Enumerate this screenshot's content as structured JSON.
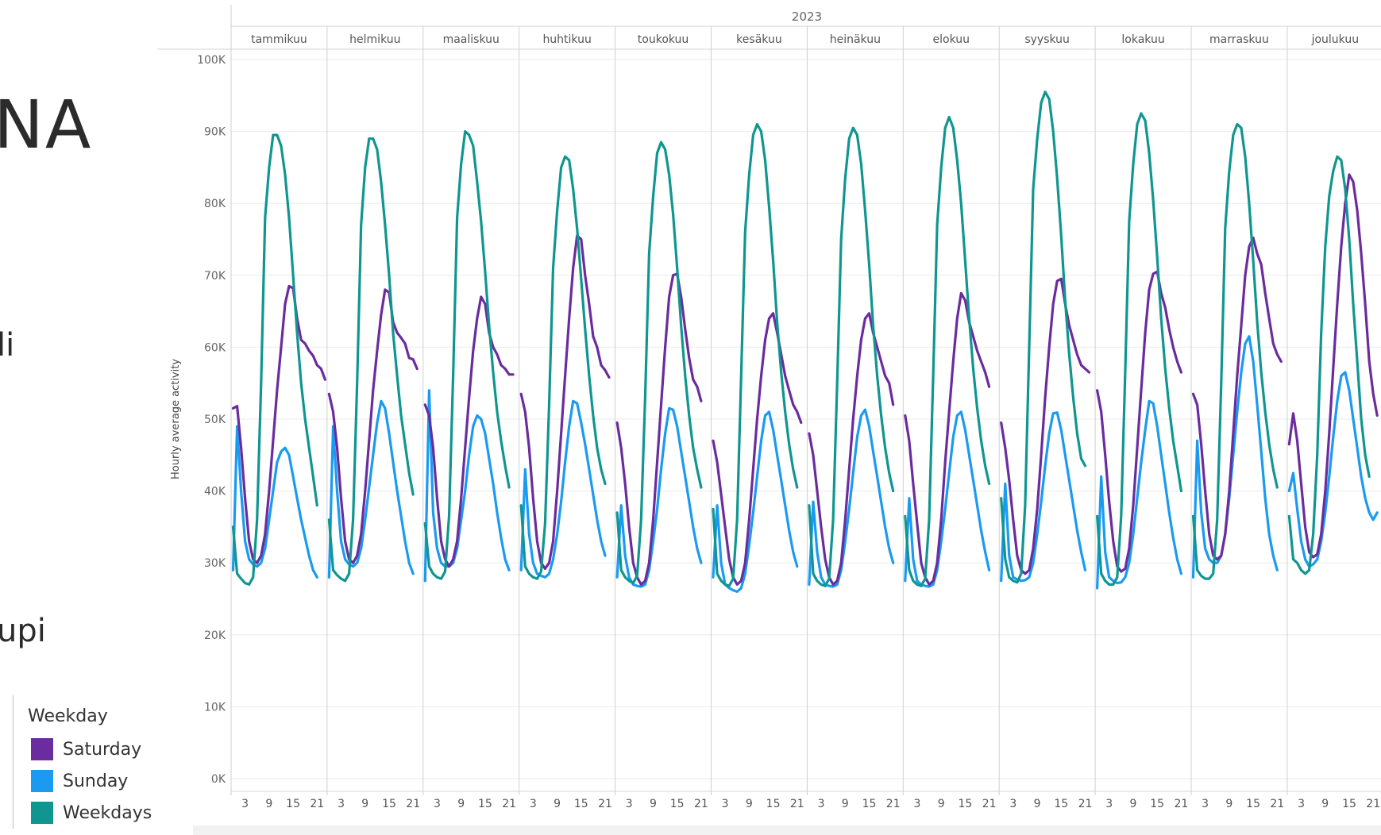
{
  "slide": {
    "heading_fragment": "NA",
    "text_fragment_1": "li",
    "text_fragment_2": "upi"
  },
  "legend": {
    "title": "Weekday",
    "items": [
      {
        "label": "Saturday",
        "color": "#6a2c9e"
      },
      {
        "label": "Sunday",
        "color": "#1a9af0"
      },
      {
        "label": "Weekdays",
        "color": "#0f9690"
      }
    ]
  },
  "chart_data": {
    "type": "line",
    "title": "2023",
    "ylabel": "Hourly average activity",
    "xlabel": "",
    "ylim": [
      0,
      100000
    ],
    "y_ticks": [
      "0K",
      "10K",
      "20K",
      "30K",
      "40K",
      "50K",
      "60K",
      "70K",
      "80K",
      "90K",
      "100K"
    ],
    "y_tick_values": [
      0,
      10000,
      20000,
      30000,
      40000,
      50000,
      60000,
      70000,
      80000,
      90000,
      100000
    ],
    "x_tick_labels": [
      "3",
      "9",
      "15",
      "21"
    ],
    "x_tick_hours": [
      3,
      9,
      15,
      21
    ],
    "hours_per_month": 24,
    "grid": true,
    "legend_position": "bottom-left",
    "months": [
      "tammikuu",
      "helmikuu",
      "maaliskuu",
      "huhtikuu",
      "toukokuu",
      "kesäkuu",
      "heinäkuu",
      "elokuu",
      "syyskuu",
      "lokakuu",
      "marraskuu",
      "joulukuu"
    ],
    "series": [
      {
        "name": "Saturday",
        "color": "#6a2c9e",
        "values_by_month": [
          [
            51500,
            51800,
            46000,
            39000,
            33000,
            30500,
            30000,
            31000,
            34000,
            40000,
            47000,
            54000,
            60000,
            66000,
            68500,
            68200,
            64000,
            61000,
            60500,
            59500,
            58800,
            57500,
            57000,
            55500
          ],
          [
            53500,
            51000,
            46000,
            39000,
            33000,
            30500,
            30000,
            31000,
            34000,
            40000,
            47000,
            54000,
            59500,
            64500,
            68000,
            67600,
            63500,
            62000,
            61300,
            60500,
            58500,
            58300,
            57000,
            null
          ],
          [
            52000,
            50500,
            46000,
            39000,
            33000,
            30500,
            29500,
            30500,
            33000,
            39000,
            46000,
            53000,
            59500,
            64000,
            67000,
            66000,
            62000,
            60000,
            59000,
            57500,
            57000,
            56200,
            56200,
            null
          ],
          [
            53500,
            51000,
            46000,
            39000,
            33000,
            30000,
            29200,
            30000,
            33000,
            40000,
            48000,
            56000,
            64000,
            71000,
            75500,
            75000,
            70000,
            66000,
            61500,
            60000,
            57500,
            56800,
            55800,
            null
          ],
          [
            49500,
            46000,
            41000,
            35000,
            30000,
            28000,
            27000,
            27500,
            30000,
            36000,
            44000,
            52000,
            60000,
            67000,
            70000,
            70200,
            67000,
            62500,
            58500,
            55500,
            54500,
            52500,
            null,
            null
          ],
          [
            47000,
            44000,
            39500,
            35000,
            30500,
            28000,
            27000,
            27500,
            30000,
            36000,
            43000,
            50000,
            56000,
            61000,
            64000,
            64700,
            62000,
            59000,
            56000,
            54000,
            52000,
            51000,
            49500,
            null
          ],
          [
            48000,
            45000,
            40000,
            35000,
            30500,
            28000,
            27000,
            27500,
            30000,
            36000,
            43000,
            50000,
            56000,
            61000,
            64000,
            64700,
            62000,
            60000,
            58000,
            56000,
            55000,
            52000,
            null,
            null
          ],
          [
            50500,
            47000,
            41000,
            35500,
            30000,
            28000,
            27000,
            27500,
            30000,
            36000,
            44000,
            51000,
            58000,
            64000,
            67500,
            66500,
            63500,
            61500,
            59500,
            58000,
            56500,
            54500,
            null,
            null
          ],
          [
            49500,
            46000,
            41500,
            36000,
            31000,
            29000,
            28500,
            29000,
            32000,
            37500,
            45000,
            53000,
            60000,
            66000,
            69200,
            69500,
            66000,
            63000,
            61000,
            59000,
            57500,
            57000,
            56500,
            null
          ],
          [
            54000,
            51000,
            45000,
            38500,
            33000,
            29500,
            28800,
            29200,
            32000,
            38000,
            46000,
            54000,
            62000,
            68000,
            70200,
            70500,
            67500,
            65500,
            62500,
            60000,
            58000,
            56500,
            null,
            null
          ],
          [
            53500,
            52000,
            46500,
            40000,
            34000,
            31000,
            30500,
            31000,
            34000,
            40000,
            48000,
            56000,
            63000,
            70000,
            74000,
            75200,
            73000,
            71500,
            67500,
            64000,
            60500,
            59000,
            58000,
            null
          ],
          [
            46500,
            50800,
            47000,
            41000,
            35000,
            31500,
            30800,
            31200,
            34000,
            40000,
            48000,
            57000,
            66000,
            74000,
            80000,
            84000,
            83000,
            79000,
            73000,
            66000,
            58000,
            53500,
            50500,
            null
          ]
        ]
      },
      {
        "name": "Sunday",
        "color": "#1a9af0",
        "values_by_month": [
          [
            29000,
            49000,
            40000,
            33000,
            30500,
            29800,
            29500,
            30000,
            32000,
            36000,
            40000,
            44000,
            45500,
            46000,
            45000,
            42000,
            39000,
            36000,
            33500,
            31000,
            29000,
            28000,
            null,
            null
          ],
          [
            28000,
            49000,
            40000,
            33000,
            30500,
            29800,
            29500,
            30000,
            32000,
            36000,
            40500,
            45000,
            49500,
            52500,
            51500,
            48000,
            44000,
            40000,
            36500,
            33000,
            30000,
            28500,
            null,
            null
          ],
          [
            27500,
            54000,
            37000,
            32000,
            30000,
            29500,
            29500,
            30000,
            32000,
            36000,
            40000,
            45000,
            49000,
            50500,
            50000,
            48000,
            44500,
            41000,
            37000,
            33500,
            30500,
            29000,
            null,
            null
          ],
          [
            29000,
            43000,
            34000,
            30000,
            28500,
            28200,
            28000,
            28500,
            30500,
            34000,
            38500,
            44000,
            49000,
            52500,
            52200,
            49500,
            46500,
            43000,
            39500,
            36000,
            33000,
            31000,
            null,
            null
          ],
          [
            28000,
            38000,
            31000,
            28000,
            27000,
            26800,
            26700,
            27000,
            29000,
            33000,
            37500,
            43000,
            48000,
            51500,
            51300,
            49000,
            45500,
            42000,
            38500,
            35000,
            32000,
            30000,
            null,
            null
          ],
          [
            28000,
            38000,
            30000,
            27000,
            26500,
            26200,
            26000,
            26500,
            28500,
            32500,
            37000,
            42000,
            47000,
            50500,
            51000,
            48500,
            45000,
            41500,
            38000,
            34500,
            31500,
            29500,
            null,
            null
          ],
          [
            27000,
            38500,
            31500,
            28000,
            27000,
            26800,
            26700,
            27000,
            29000,
            33000,
            37500,
            42500,
            47500,
            50500,
            51300,
            49000,
            45500,
            42000,
            38500,
            35000,
            32000,
            30000,
            null,
            null
          ],
          [
            27500,
            39000,
            30500,
            27500,
            27000,
            26800,
            26700,
            27000,
            29000,
            33000,
            37500,
            42500,
            47500,
            50500,
            51000,
            48500,
            45000,
            41500,
            38000,
            34500,
            31500,
            29000,
            null,
            null
          ],
          [
            27500,
            41000,
            31000,
            28000,
            27700,
            27500,
            27600,
            28000,
            30000,
            34000,
            38500,
            43500,
            48000,
            50800,
            50900,
            48500,
            45000,
            41500,
            38000,
            34500,
            31500,
            29000,
            null,
            null
          ],
          [
            26500,
            42000,
            31500,
            28000,
            27500,
            27200,
            27300,
            28000,
            30000,
            34000,
            39000,
            44000,
            48500,
            52500,
            52200,
            49000,
            45000,
            41000,
            37000,
            33500,
            30500,
            28500,
            null,
            null
          ],
          [
            28000,
            47000,
            37000,
            32000,
            30500,
            30000,
            30000,
            31000,
            34000,
            39000,
            45000,
            51000,
            56500,
            60500,
            61500,
            58000,
            52000,
            45500,
            39000,
            34000,
            31000,
            29000,
            null,
            null
          ],
          [
            40000,
            42500,
            37500,
            33000,
            30500,
            29500,
            29800,
            30500,
            33000,
            37000,
            42000,
            47500,
            52500,
            56000,
            56500,
            54000,
            50000,
            46000,
            42000,
            39000,
            37000,
            36000,
            37000,
            null
          ]
        ]
      },
      {
        "name": "Weekdays",
        "color": "#0f9690",
        "values_by_month": [
          [
            35000,
            28500,
            27800,
            27200,
            27000,
            28000,
            36000,
            55000,
            78000,
            85000,
            89500,
            89500,
            88000,
            84000,
            78000,
            70000,
            62000,
            55000,
            50000,
            46000,
            42000,
            38000,
            null,
            null
          ],
          [
            36000,
            29000,
            28300,
            27800,
            27500,
            28500,
            36000,
            55000,
            77000,
            85000,
            89000,
            89000,
            87500,
            83000,
            77000,
            70000,
            62000,
            56000,
            50500,
            46500,
            42500,
            39500,
            null,
            null
          ],
          [
            35500,
            29500,
            28500,
            28000,
            27800,
            28800,
            36500,
            56000,
            78000,
            85500,
            90000,
            89500,
            88000,
            83000,
            77500,
            70500,
            63000,
            56500,
            51000,
            47000,
            43500,
            40500,
            null,
            null
          ],
          [
            38000,
            29500,
            28500,
            28000,
            27800,
            28800,
            35500,
            52000,
            71000,
            79000,
            85000,
            86500,
            86000,
            82000,
            76500,
            69500,
            62500,
            56000,
            50500,
            46000,
            43000,
            41000,
            null,
            null
          ],
          [
            37000,
            29000,
            28000,
            27500,
            27200,
            28200,
            36000,
            53000,
            73000,
            81000,
            87000,
            88500,
            87500,
            84000,
            78500,
            71000,
            63000,
            56000,
            50500,
            46000,
            43000,
            40500,
            null,
            null
          ],
          [
            37500,
            28500,
            27500,
            27000,
            26800,
            27800,
            36000,
            56000,
            76000,
            84000,
            89500,
            91000,
            90000,
            86000,
            79500,
            72000,
            63500,
            56500,
            51000,
            46500,
            43000,
            40500,
            null,
            null
          ],
          [
            38000,
            28500,
            27500,
            27000,
            26800,
            27800,
            36000,
            55000,
            75000,
            83500,
            89000,
            90500,
            89500,
            85500,
            79000,
            71500,
            63000,
            56000,
            50500,
            46000,
            42500,
            40000,
            null,
            null
          ],
          [
            36500,
            29000,
            27500,
            27000,
            26800,
            27800,
            36000,
            56000,
            77000,
            85000,
            90500,
            92000,
            90500,
            86000,
            80000,
            72000,
            64000,
            57000,
            51500,
            47000,
            43500,
            41000,
            null,
            null
          ],
          [
            39000,
            30500,
            28000,
            27500,
            27300,
            28500,
            38000,
            60000,
            82000,
            89000,
            94000,
            95500,
            94500,
            90000,
            83500,
            75500,
            66500,
            59000,
            53000,
            48000,
            44500,
            43500,
            null,
            null
          ],
          [
            36500,
            28500,
            27500,
            27000,
            27000,
            28000,
            36500,
            56500,
            77500,
            85500,
            91000,
            92500,
            91500,
            87000,
            80500,
            72500,
            64000,
            57000,
            51500,
            47000,
            43500,
            40000,
            null,
            null
          ],
          [
            36500,
            29000,
            28200,
            27800,
            27800,
            28500,
            36000,
            55000,
            76500,
            84500,
            89500,
            91000,
            90500,
            86500,
            80000,
            72000,
            63500,
            56500,
            51000,
            46500,
            43000,
            40500,
            null,
            null
          ],
          [
            36500,
            30500,
            30000,
            29000,
            28500,
            29000,
            34000,
            45000,
            62000,
            74000,
            81000,
            84500,
            86500,
            86000,
            82000,
            75000,
            66000,
            58000,
            50000,
            45000,
            42000,
            null,
            null,
            null
          ]
        ]
      }
    ]
  }
}
